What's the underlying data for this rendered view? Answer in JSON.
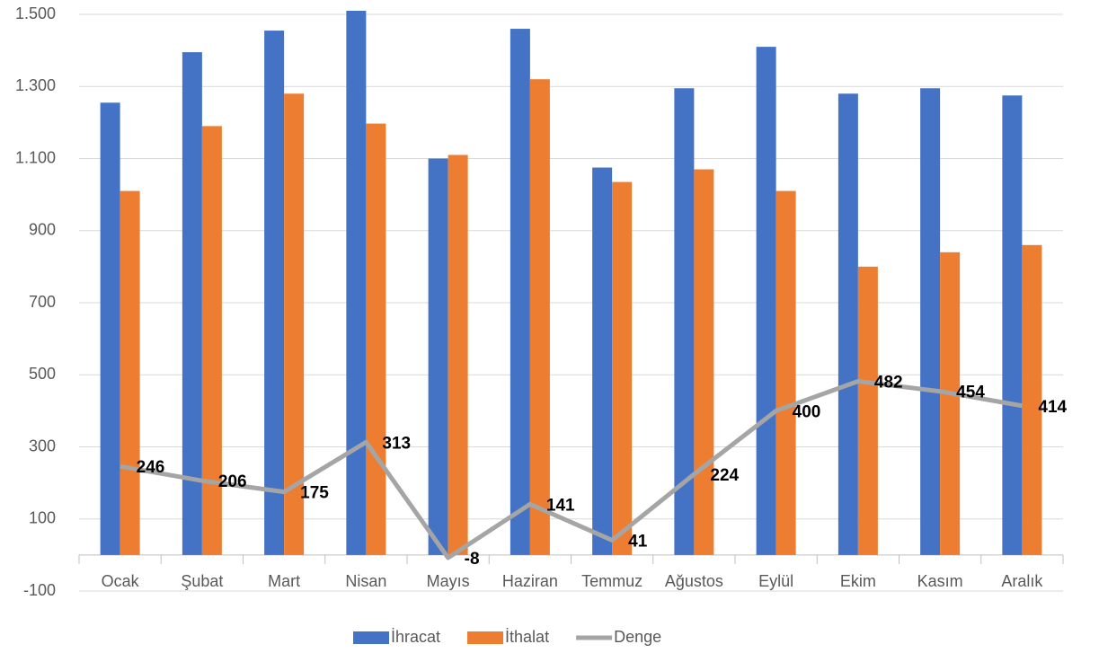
{
  "chart_data": {
    "type": "bar_line",
    "categories": [
      "Ocak",
      "Şubat",
      "Mart",
      "Nisan",
      "Mayıs",
      "Haziran",
      "Temmuz",
      "Ağustos",
      "Eylül",
      "Ekim",
      "Kasım",
      "Aralık"
    ],
    "series": [
      {
        "name": "İhracat",
        "type": "bar",
        "color": "#4472c4",
        "values": [
          1255,
          1395,
          1455,
          1510,
          1100,
          1460,
          1075,
          1295,
          1410,
          1280,
          1295,
          1275
        ]
      },
      {
        "name": "İthalat",
        "type": "bar",
        "color": "#ed7d31",
        "values": [
          1010,
          1190,
          1280,
          1197,
          1110,
          1320,
          1035,
          1070,
          1010,
          800,
          840,
          860
        ]
      },
      {
        "name": "Denge",
        "type": "line",
        "color": "#a5a5a5",
        "values": [
          246,
          206,
          175,
          313,
          -8,
          141,
          41,
          224,
          400,
          482,
          454,
          414
        ]
      }
    ],
    "ylim": [
      -100,
      1500
    ],
    "yticks": [
      -100,
      100,
      300,
      500,
      700,
      900,
      {
        "value": 1100,
        "label": "1.100"
      },
      {
        "value": 1300,
        "label": "1.300"
      },
      {
        "value": 1500,
        "label": "1.500"
      }
    ],
    "grid": true,
    "legend": "bottom"
  }
}
